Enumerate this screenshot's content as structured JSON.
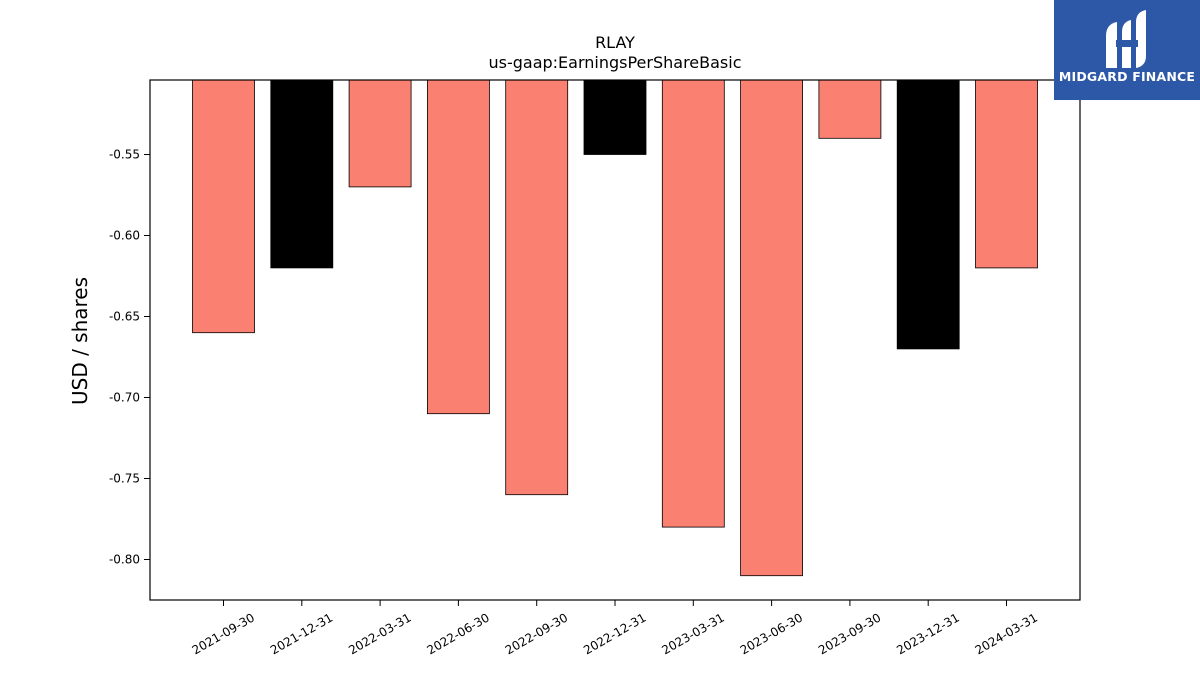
{
  "brand": {
    "name": "MIDGARD FINANCE",
    "background": "#2d58a8"
  },
  "chart_data": {
    "type": "bar",
    "title": "RLAY",
    "subtitle": "us-gaap:EarningsPerShareBasic",
    "xlabel": "",
    "ylabel": "USD / shares",
    "categories": [
      "2021-09-30",
      "2021-12-31",
      "2022-03-31",
      "2022-06-30",
      "2022-09-30",
      "2022-12-31",
      "2023-03-31",
      "2023-06-30",
      "2023-09-30",
      "2023-12-31",
      "2024-03-31"
    ],
    "values": [
      -0.66,
      -0.62,
      -0.57,
      -0.71,
      -0.76,
      -0.55,
      -0.78,
      -0.81,
      -0.54,
      -0.67,
      -0.62
    ],
    "bar_colors": [
      "#fa8072",
      "#000000",
      "#fa8072",
      "#fa8072",
      "#fa8072",
      "#000000",
      "#fa8072",
      "#fa8072",
      "#fa8072",
      "#000000",
      "#fa8072"
    ],
    "ylim": [
      -0.825,
      -0.504
    ],
    "yticks": [
      "-0.55",
      "-0.60",
      "-0.65",
      "-0.70",
      "-0.75",
      "-0.80"
    ],
    "grid": false,
    "legend": "none"
  }
}
